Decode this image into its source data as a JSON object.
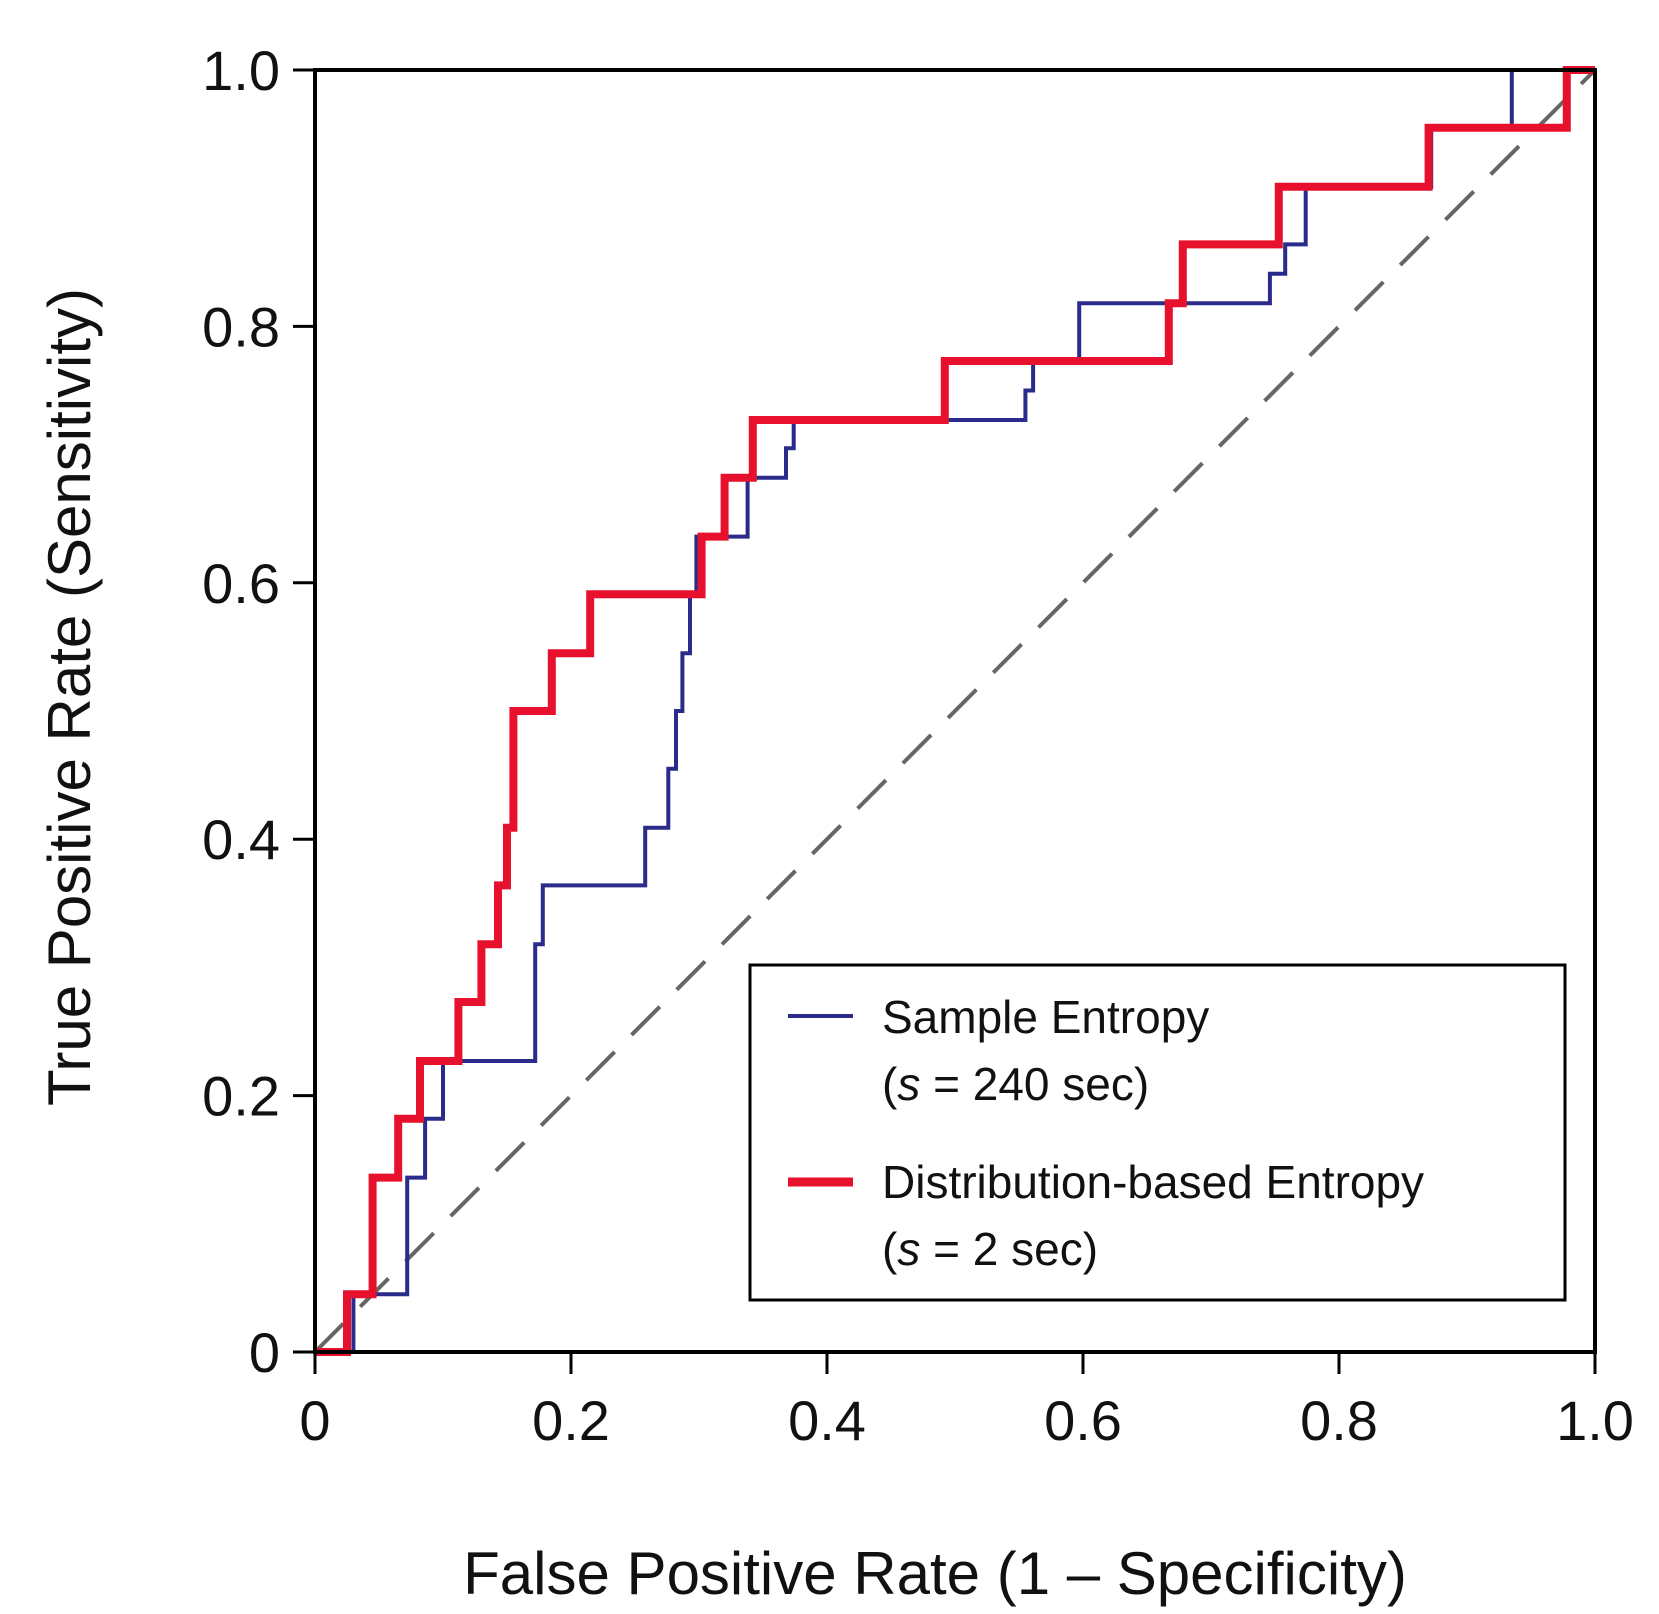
{
  "chart_data": {
    "type": "line",
    "title": "",
    "xlabel": "False Positive Rate (1 – Specificity)",
    "ylabel": "True Positive Rate (Sensitivity)",
    "xlim": [
      0,
      1
    ],
    "ylim": [
      0,
      1
    ],
    "x_ticks": [
      0,
      0.2,
      0.4,
      0.6,
      0.8,
      1.0
    ],
    "x_tick_labels": [
      "0",
      "0.2",
      "0.4",
      "0.6",
      "0.8",
      "1.0"
    ],
    "y_ticks": [
      0,
      0.2,
      0.4,
      0.6,
      0.8,
      1.0
    ],
    "y_tick_labels": [
      "0",
      "0.2",
      "0.4",
      "0.6",
      "0.8",
      "1.0"
    ],
    "grid": false,
    "legend_position": "bottom-right",
    "reference_line": {
      "name": "chance",
      "style": "dashed",
      "color": "#666666",
      "points": [
        [
          0,
          0
        ],
        [
          1,
          1
        ]
      ]
    },
    "series": [
      {
        "name": "Sample Entropy",
        "note": {
          "open": "(",
          "var": "s",
          "rest": " = 240 sec)"
        },
        "color": "#2b2b8c",
        "style": "thin",
        "points": [
          [
            0,
            0
          ],
          [
            0.03,
            0
          ],
          [
            0.03,
            0.045
          ],
          [
            0.072,
            0.045
          ],
          [
            0.072,
            0.136
          ],
          [
            0.086,
            0.136
          ],
          [
            0.086,
            0.182
          ],
          [
            0.1,
            0.182
          ],
          [
            0.1,
            0.227
          ],
          [
            0.172,
            0.227
          ],
          [
            0.172,
            0.318
          ],
          [
            0.178,
            0.318
          ],
          [
            0.178,
            0.364
          ],
          [
            0.258,
            0.364
          ],
          [
            0.258,
            0.409
          ],
          [
            0.276,
            0.409
          ],
          [
            0.276,
            0.455
          ],
          [
            0.282,
            0.455
          ],
          [
            0.282,
            0.5
          ],
          [
            0.287,
            0.5
          ],
          [
            0.287,
            0.545
          ],
          [
            0.293,
            0.545
          ],
          [
            0.293,
            0.591
          ],
          [
            0.298,
            0.591
          ],
          [
            0.298,
            0.636
          ],
          [
            0.338,
            0.636
          ],
          [
            0.338,
            0.682
          ],
          [
            0.368,
            0.682
          ],
          [
            0.368,
            0.705
          ],
          [
            0.374,
            0.705
          ],
          [
            0.374,
            0.727
          ],
          [
            0.555,
            0.727
          ],
          [
            0.555,
            0.75
          ],
          [
            0.561,
            0.75
          ],
          [
            0.561,
            0.773
          ],
          [
            0.597,
            0.773
          ],
          [
            0.597,
            0.818
          ],
          [
            0.746,
            0.818
          ],
          [
            0.746,
            0.841
          ],
          [
            0.758,
            0.841
          ],
          [
            0.758,
            0.864
          ],
          [
            0.774,
            0.864
          ],
          [
            0.774,
            0.909
          ],
          [
            0.872,
            0.909
          ],
          [
            0.872,
            0.955
          ],
          [
            0.935,
            0.955
          ],
          [
            0.935,
            1.0
          ],
          [
            1.0,
            1.0
          ]
        ]
      },
      {
        "name": "Distribution-based Entropy",
        "note": {
          "open": "(",
          "var": "s",
          "rest": " = 2 sec)"
        },
        "color": "#e8112d",
        "style": "thick",
        "points": [
          [
            0,
            0
          ],
          [
            0.025,
            0
          ],
          [
            0.025,
            0.045
          ],
          [
            0.045,
            0.045
          ],
          [
            0.045,
            0.136
          ],
          [
            0.065,
            0.136
          ],
          [
            0.065,
            0.182
          ],
          [
            0.082,
            0.182
          ],
          [
            0.082,
            0.227
          ],
          [
            0.112,
            0.227
          ],
          [
            0.112,
            0.273
          ],
          [
            0.13,
            0.273
          ],
          [
            0.13,
            0.318
          ],
          [
            0.143,
            0.318
          ],
          [
            0.143,
            0.364
          ],
          [
            0.15,
            0.364
          ],
          [
            0.15,
            0.409
          ],
          [
            0.155,
            0.409
          ],
          [
            0.155,
            0.5
          ],
          [
            0.185,
            0.5
          ],
          [
            0.185,
            0.545
          ],
          [
            0.215,
            0.545
          ],
          [
            0.215,
            0.591
          ],
          [
            0.302,
            0.591
          ],
          [
            0.302,
            0.636
          ],
          [
            0.32,
            0.636
          ],
          [
            0.32,
            0.682
          ],
          [
            0.342,
            0.682
          ],
          [
            0.342,
            0.727
          ],
          [
            0.492,
            0.727
          ],
          [
            0.492,
            0.773
          ],
          [
            0.667,
            0.773
          ],
          [
            0.667,
            0.818
          ],
          [
            0.678,
            0.818
          ],
          [
            0.678,
            0.864
          ],
          [
            0.753,
            0.864
          ],
          [
            0.753,
            0.909
          ],
          [
            0.87,
            0.909
          ],
          [
            0.87,
            0.955
          ],
          [
            0.978,
            0.955
          ],
          [
            0.978,
            1.0
          ],
          [
            1.0,
            1.0
          ]
        ]
      }
    ]
  }
}
